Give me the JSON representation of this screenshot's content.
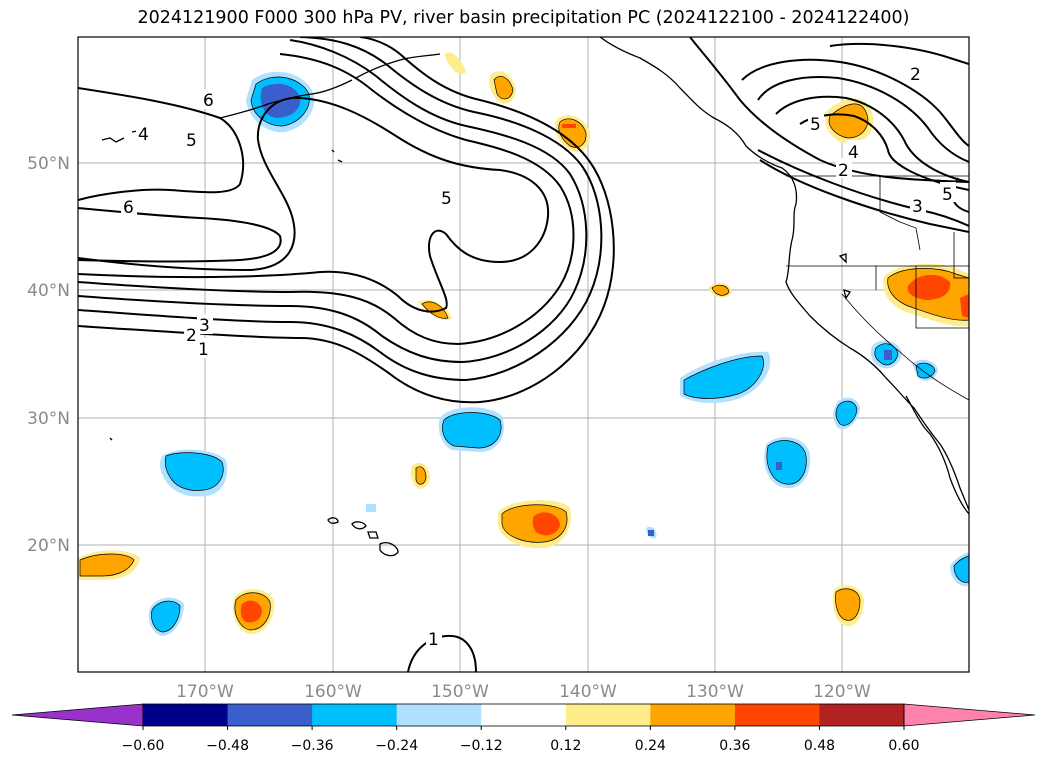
{
  "title": "2024121900 F000 300 hPa PV, river basin precipitation PC (2024122100 - 2024122400)",
  "map": {
    "lat_labels": [
      "50°N",
      "40°N",
      "30°N",
      "20°N"
    ],
    "lon_labels": [
      "170°W",
      "160°W",
      "150°W",
      "140°W",
      "130°W",
      "120°W"
    ],
    "contour_labels": [
      "6",
      "5",
      "4",
      "6",
      "5",
      "3",
      "2",
      "1",
      "1",
      "2",
      "5",
      "4",
      "2",
      "3",
      "5"
    ]
  },
  "colorbar": {
    "levels": [
      "−0.60",
      "−0.48",
      "−0.36",
      "−0.24",
      "−0.12",
      "0.12",
      "0.24",
      "0.36",
      "0.48",
      "0.60"
    ],
    "colors": [
      "#9932cc",
      "#00008b",
      "#3a5fcd",
      "#00bfff",
      "#b0e2ff",
      "#ffffff",
      "#ffec8b",
      "#ffa500",
      "#ff4500",
      "#b22222",
      "#ff82ab"
    ]
  }
}
